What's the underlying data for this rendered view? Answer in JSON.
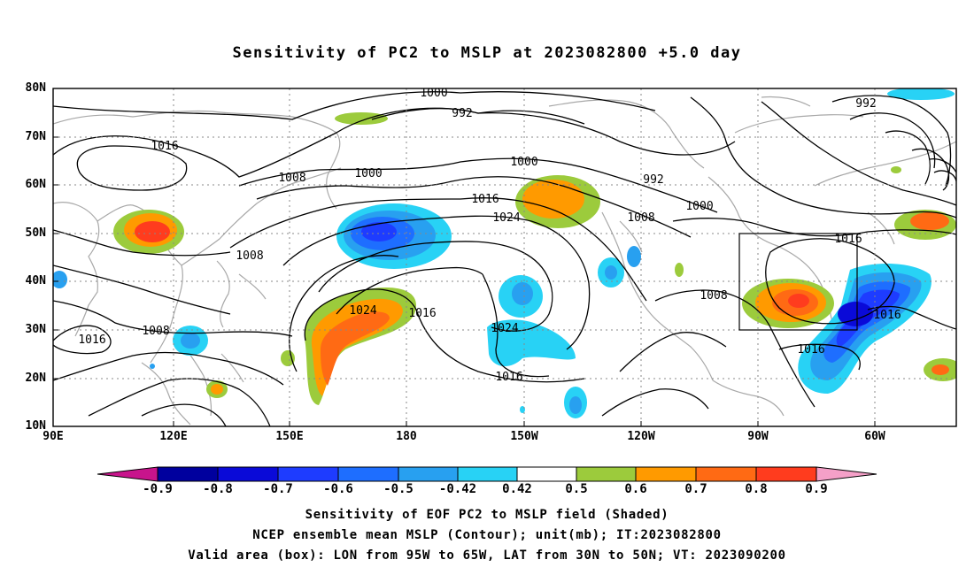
{
  "title": "Sensitivity of PC2 to MSLP at 2023082800 +5.0 day",
  "map": {
    "lat_labels": [
      "80N",
      "70N",
      "60N",
      "50N",
      "40N",
      "30N",
      "20N",
      "10N"
    ],
    "lon_labels": [
      "90E",
      "120E",
      "150E",
      "180",
      "150W",
      "120W",
      "90W",
      "60W"
    ],
    "contour_labels": [
      "1000",
      "992",
      "1016",
      "1008",
      "1000",
      "1000",
      "992",
      "992",
      "1016",
      "1024",
      "1008",
      "1000",
      "1016",
      "1008",
      "1008",
      "1024",
      "1016",
      "1024",
      "1016",
      "1016",
      "1016",
      "1016",
      "1008"
    ],
    "valid_box": {
      "lon_min": "95W",
      "lon_max": "65W",
      "lat_min": "30N",
      "lat_max": "50N"
    }
  },
  "colorbar": {
    "labels": [
      "-0.9",
      "-0.8",
      "-0.7",
      "-0.6",
      "-0.5",
      "-0.42",
      "0.42",
      "0.5",
      "0.6",
      "0.7",
      "0.8",
      "0.9"
    ],
    "colors": [
      "#00009e",
      "#0a0ad8",
      "#1e3cff",
      "#1e6eff",
      "#28a0f0",
      "#28d2f5",
      "#ffffff",
      "#9ccb3c",
      "#ff9a00",
      "#ff6a14",
      "#ff3c1e",
      "#ff0000"
    ],
    "low_arrow_color": "#c8148c",
    "high_arrow_color": "#f5a0c8"
  },
  "captions": {
    "line1": "Sensitivity of EOF PC2 to MSLP field (Shaded)",
    "line2": "NCEP ensemble mean MSLP (Contour); unit(mb); IT:2023082800",
    "line3": "Valid area (box): LON from 95W to 65W, LAT from 30N to 50N; VT: 2023090200"
  }
}
